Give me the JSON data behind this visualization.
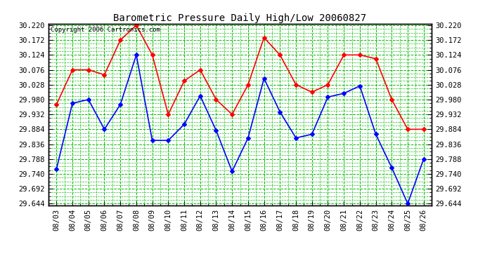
{
  "title": "Barometric Pressure Daily High/Low 20060827",
  "copyright": "Copyright 2006 Cartronics.com",
  "dates": [
    "08/03",
    "08/04",
    "08/05",
    "08/06",
    "08/07",
    "08/08",
    "08/09",
    "08/10",
    "08/11",
    "08/12",
    "08/13",
    "08/14",
    "08/15",
    "08/16",
    "08/17",
    "08/18",
    "08/19",
    "08/20",
    "08/21",
    "08/22",
    "08/23",
    "08/24",
    "08/25",
    "08/26"
  ],
  "high": [
    29.964,
    30.076,
    30.076,
    30.06,
    30.172,
    30.22,
    30.124,
    29.932,
    30.04,
    30.076,
    29.98,
    29.932,
    30.028,
    30.18,
    30.124,
    30.028,
    30.004,
    30.028,
    30.124,
    30.124,
    30.112,
    29.98,
    29.884,
    29.884
  ],
  "low": [
    29.756,
    29.968,
    29.98,
    29.884,
    29.964,
    30.124,
    29.848,
    29.848,
    29.9,
    29.992,
    29.88,
    29.748,
    29.856,
    30.048,
    29.94,
    29.856,
    29.868,
    29.988,
    30.0,
    30.024,
    29.868,
    29.76,
    29.644,
    29.788
  ],
  "ylim_min": 29.644,
  "ylim_max": 30.22,
  "ytick_start": 29.644,
  "ytick_interval": 0.048,
  "high_color": "#ff0000",
  "low_color": "#0000ff",
  "grid_major_color": "#00bb00",
  "grid_minor_color": "#00bb00",
  "bg_color": "#ffffff",
  "marker": "D",
  "marker_size": 3,
  "line_width": 1.2,
  "title_fontsize": 10,
  "tick_fontsize": 7.5,
  "copyright_fontsize": 6.5
}
